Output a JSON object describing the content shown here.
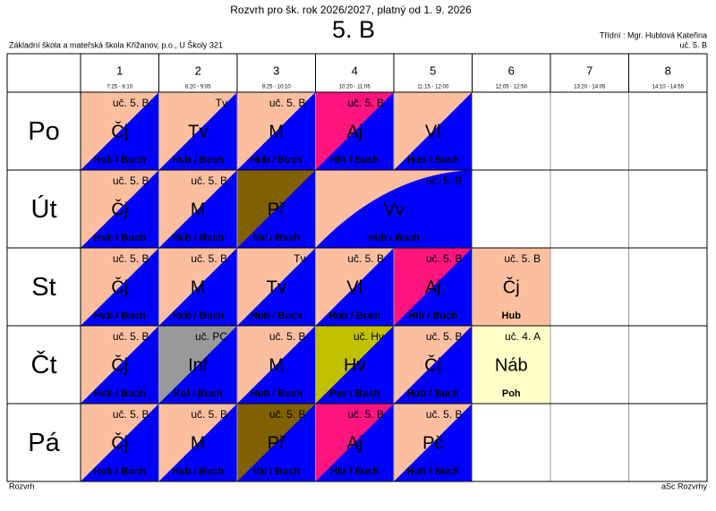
{
  "header": {
    "title": "Rozvrh pro šk. rok 2026/2027, platný od 1. 9. 2026",
    "class": "5. B",
    "school": "Základní škola a mateřská škola Křižanov, p.o., U Školy 321",
    "teacher": "Třídní : Mgr. Hublová Kateřina",
    "room": "uč. 5. B"
  },
  "periods": [
    {
      "number": "1",
      "time": "7:25 - 8:10"
    },
    {
      "number": "2",
      "time": "8:20 - 9:05"
    },
    {
      "number": "3",
      "time": "9:25 - 10:10"
    },
    {
      "number": "4",
      "time": "10:20 - 11:05"
    },
    {
      "number": "5",
      "time": "11:15 - 12:00"
    },
    {
      "number": "6",
      "time": "12:05 - 12:50"
    },
    {
      "number": "7",
      "time": "13:20 - 14:05"
    },
    {
      "number": "8",
      "time": "14:10 - 14:55"
    }
  ],
  "rows": [
    {
      "day": "Po",
      "lessons": [
        {
          "subject": "Čj",
          "room": "uč. 5. B",
          "group": "Hub / Buch",
          "colors": [
            "#fbbfa0",
            "#0000ff"
          ]
        },
        {
          "subject": "Tv",
          "room": "Tv",
          "group": "Hub / Buch",
          "colors": [
            "#fbbfa0",
            "#0000ff"
          ]
        },
        {
          "subject": "M",
          "room": "uč. 5. B",
          "group": "Hub / Buch",
          "colors": [
            "#fbbfa0",
            "#0000ff"
          ]
        },
        {
          "subject": "Aj",
          "room": "uč. 5. B",
          "group": "Hlb / Buch",
          "colors": [
            "#ff1480",
            "#0000ff"
          ]
        },
        {
          "subject": "Vl",
          "group": "Hub / Buch",
          "colors": [
            "#fbbfa0",
            "#0000ff"
          ]
        }
      ]
    },
    {
      "day": "Út",
      "lessons": [
        {
          "subject": "Čj",
          "room": "uč. 5. B",
          "group": "Hub / Buch",
          "colors": [
            "#fbbfa0",
            "#0000ff"
          ]
        },
        {
          "subject": "M",
          "room": "uč. 5. B",
          "group": "Hub / Buch",
          "colors": [
            "#fbbfa0",
            "#0000ff"
          ]
        },
        {
          "subject": "Př",
          "group": "Val / Buch",
          "colors": [
            "#806000",
            "#0000ff"
          ]
        },
        {
          "subject": "Vv",
          "room": "uč. 5. B",
          "group": "Hub / Buch",
          "colors": [
            "#fbbfa0",
            "#0000ff"
          ],
          "span": 2
        }
      ]
    },
    {
      "day": "St",
      "lessons": [
        {
          "subject": "Čj",
          "room": "uč. 5. B",
          "group": "Hub / Buch",
          "colors": [
            "#fbbfa0",
            "#0000ff"
          ]
        },
        {
          "subject": "M",
          "room": "uč. 5. B",
          "group": "Hub / Buch",
          "colors": [
            "#fbbfa0",
            "#0000ff"
          ]
        },
        {
          "subject": "Tv",
          "room": "Tv",
          "group": "Hub / Buch",
          "colors": [
            "#fbbfa0",
            "#0000ff"
          ]
        },
        {
          "subject": "Vl",
          "room": "uč. 5. B",
          "group": "Hub / Buch",
          "colors": [
            "#fbbfa0",
            "#0000ff"
          ]
        },
        {
          "subject": "Aj",
          "room": "uč. 5. B",
          "group": "Hlb / Buch",
          "colors": [
            "#ff1480",
            "#0000ff"
          ]
        },
        {
          "subject": "Čj",
          "room": "uč. 5. B",
          "group": "Hub",
          "colors": [
            "#fbbfa0"
          ]
        }
      ]
    },
    {
      "day": "Čt",
      "lessons": [
        {
          "subject": "Čj",
          "room": "uč. 5. B",
          "group": "Hub / Buch",
          "colors": [
            "#fbbfa0",
            "#0000ff"
          ]
        },
        {
          "subject": "Inf",
          "room": "uč. PC",
          "group": "Kol / Buch",
          "colors": [
            "#999999",
            "#0000ff"
          ]
        },
        {
          "subject": "M",
          "room": "uč. 5. B",
          "group": "Hub / Buch",
          "colors": [
            "#fbbfa0",
            "#0000ff"
          ]
        },
        {
          "subject": "Hv",
          "room": "uč. Hv",
          "group": "Pav / Buch",
          "colors": [
            "#c0c000",
            "#0000ff"
          ]
        },
        {
          "subject": "Čj",
          "room": "uč. 5. B",
          "group": "Hub / Buch",
          "colors": [
            "#fbbfa0",
            "#0000ff"
          ]
        },
        {
          "subject": "Náb",
          "room": "uč. 4. A",
          "group": "Poh",
          "colors": [
            "#ffffc8"
          ]
        }
      ]
    },
    {
      "day": "Pá",
      "lessons": [
        {
          "subject": "Čj",
          "room": "uč. 5. B",
          "group": "Hub / Buch",
          "colors": [
            "#fbbfa0",
            "#0000ff"
          ]
        },
        {
          "subject": "M",
          "room": "uč. 5. B",
          "group": "Hub / Buch",
          "colors": [
            "#fbbfa0",
            "#0000ff"
          ]
        },
        {
          "subject": "Př",
          "room": "uč. 5. B",
          "group": "Val / Buch",
          "colors": [
            "#806000",
            "#0000ff"
          ]
        },
        {
          "subject": "Aj",
          "room": "uč. 5. B",
          "group": "Hlb / Buch",
          "colors": [
            "#ff1480",
            "#0000ff"
          ]
        },
        {
          "subject": "Pč",
          "room": "uč. 5. B",
          "group": "Hub / Buch",
          "colors": [
            "#fbbfa0",
            "#0000ff"
          ]
        }
      ]
    }
  ],
  "footer": {
    "left": "Rozvrh",
    "right": "aSc Rozvrhy"
  }
}
